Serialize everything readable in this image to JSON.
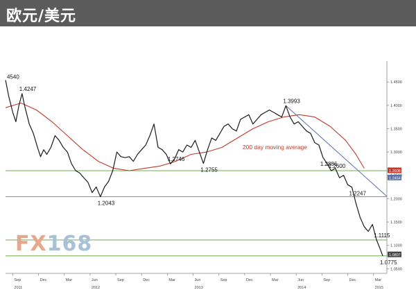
{
  "header": {
    "title": "欧元/美元"
  },
  "logo": {
    "part1": "FX",
    "part2": "168"
  },
  "chart_data": {
    "type": "line",
    "title": "欧元/美元",
    "xlabel": "",
    "ylabel": "",
    "x_tick_labels": [
      {
        "label": "Sep",
        "x": 2011.67
      },
      {
        "label": "Dec",
        "x": 2011.92
      },
      {
        "label": "Mar",
        "x": 2012.17
      },
      {
        "label": "Jun",
        "x": 2012.42
      },
      {
        "label": "Sep",
        "x": 2012.67
      },
      {
        "label": "Dec",
        "x": 2012.92
      },
      {
        "label": "Mar",
        "x": 2013.17
      },
      {
        "label": "Jun",
        "x": 2013.42
      },
      {
        "label": "Sep",
        "x": 2013.67
      },
      {
        "label": "Dec",
        "x": 2013.92
      },
      {
        "label": "Mar",
        "x": 2014.17
      },
      {
        "label": "Jun",
        "x": 2014.42
      },
      {
        "label": "Sep",
        "x": 2014.67
      },
      {
        "label": "Dec",
        "x": 2014.92
      },
      {
        "label": "Mar",
        "x": 2015.17
      }
    ],
    "year_labels": [
      {
        "label": "2011",
        "x": 2011.67
      },
      {
        "label": "2012",
        "x": 2012.42
      },
      {
        "label": "2013",
        "x": 2013.42
      },
      {
        "label": "2014",
        "x": 2014.42
      },
      {
        "label": "2015",
        "x": 2015.17
      }
    ],
    "xlim": [
      2011.6,
      2015.3
    ],
    "ylim": [
      1.04,
      1.48
    ],
    "y_ticks": [
      1.05,
      1.1,
      1.15,
      1.2,
      1.25,
      1.3,
      1.35,
      1.4,
      1.45
    ],
    "y_tick_labels": [
      "1.0500",
      "1.1000",
      "1.1500",
      "1.2000",
      "1.2500",
      "1.3000",
      "1.3500",
      "1.4000",
      "1.4500"
    ],
    "series": [
      {
        "name": "",
        "color": "#1a1a1a",
        "points": [
          [
            2011.6,
            1.454
          ],
          [
            2011.63,
            1.42
          ],
          [
            2011.67,
            1.385
          ],
          [
            2011.7,
            1.365
          ],
          [
            2011.73,
            1.4
          ],
          [
            2011.76,
            1.425
          ],
          [
            2011.79,
            1.395
          ],
          [
            2011.83,
            1.36
          ],
          [
            2011.87,
            1.34
          ],
          [
            2011.91,
            1.31
          ],
          [
            2011.94,
            1.29
          ],
          [
            2011.97,
            1.305
          ],
          [
            2012.0,
            1.295
          ],
          [
            2012.04,
            1.31
          ],
          [
            2012.08,
            1.335
          ],
          [
            2012.12,
            1.325
          ],
          [
            2012.16,
            1.31
          ],
          [
            2012.2,
            1.3
          ],
          [
            2012.24,
            1.275
          ],
          [
            2012.28,
            1.26
          ],
          [
            2012.32,
            1.255
          ],
          [
            2012.36,
            1.2445
          ],
          [
            2012.4,
            1.235
          ],
          [
            2012.44,
            1.213
          ],
          [
            2012.48,
            1.225
          ],
          [
            2012.52,
            1.2043
          ],
          [
            2012.56,
            1.225
          ],
          [
            2012.6,
            1.237
          ],
          [
            2012.64,
            1.26
          ],
          [
            2012.68,
            1.3
          ],
          [
            2012.72,
            1.29
          ],
          [
            2012.76,
            1.288
          ],
          [
            2012.8,
            1.29
          ],
          [
            2012.84,
            1.28
          ],
          [
            2012.88,
            1.295
          ],
          [
            2012.92,
            1.305
          ],
          [
            2012.96,
            1.315
          ],
          [
            2013.0,
            1.335
          ],
          [
            2013.04,
            1.36
          ],
          [
            2013.08,
            1.31
          ],
          [
            2013.12,
            1.305
          ],
          [
            2013.16,
            1.295
          ],
          [
            2013.2,
            1.2746
          ],
          [
            2013.24,
            1.285
          ],
          [
            2013.28,
            1.305
          ],
          [
            2013.32,
            1.3
          ],
          [
            2013.36,
            1.315
          ],
          [
            2013.4,
            1.31
          ],
          [
            2013.44,
            1.325
          ],
          [
            2013.48,
            1.3
          ],
          [
            2013.52,
            1.2755
          ],
          [
            2013.56,
            1.305
          ],
          [
            2013.6,
            1.33
          ],
          [
            2013.64,
            1.325
          ],
          [
            2013.68,
            1.34
          ],
          [
            2013.72,
            1.355
          ],
          [
            2013.76,
            1.36
          ],
          [
            2013.8,
            1.35
          ],
          [
            2013.84,
            1.345
          ],
          [
            2013.88,
            1.37
          ],
          [
            2013.92,
            1.375
          ],
          [
            2013.96,
            1.38
          ],
          [
            2014.0,
            1.36
          ],
          [
            2014.04,
            1.37
          ],
          [
            2014.08,
            1.38
          ],
          [
            2014.12,
            1.385
          ],
          [
            2014.16,
            1.39
          ],
          [
            2014.2,
            1.385
          ],
          [
            2014.24,
            1.38
          ],
          [
            2014.28,
            1.375
          ],
          [
            2014.32,
            1.3993
          ],
          [
            2014.36,
            1.375
          ],
          [
            2014.4,
            1.36
          ],
          [
            2014.44,
            1.365
          ],
          [
            2014.48,
            1.355
          ],
          [
            2014.52,
            1.345
          ],
          [
            2014.56,
            1.34
          ],
          [
            2014.6,
            1.32
          ],
          [
            2014.64,
            1.315
          ],
          [
            2014.68,
            1.2886
          ],
          [
            2014.72,
            1.275
          ],
          [
            2014.76,
            1.26
          ],
          [
            2014.8,
            1.265
          ],
          [
            2014.84,
            1.245
          ],
          [
            2014.88,
            1.25
          ],
          [
            2014.92,
            1.23
          ],
          [
            2014.96,
            1.2247
          ],
          [
            2015.0,
            1.19
          ],
          [
            2015.04,
            1.16
          ],
          [
            2015.08,
            1.14
          ],
          [
            2015.12,
            1.13
          ],
          [
            2015.16,
            1.145
          ],
          [
            2015.2,
            1.1115
          ],
          [
            2015.23,
            1.095
          ],
          [
            2015.26,
            1.0775
          ]
        ]
      },
      {
        "name": "200 day moving average",
        "color": "#c0392b",
        "points": [
          [
            2011.6,
            1.395
          ],
          [
            2011.75,
            1.405
          ],
          [
            2011.9,
            1.39
          ],
          [
            2012.05,
            1.365
          ],
          [
            2012.2,
            1.335
          ],
          [
            2012.35,
            1.305
          ],
          [
            2012.5,
            1.28
          ],
          [
            2012.65,
            1.265
          ],
          [
            2012.8,
            1.26
          ],
          [
            2012.95,
            1.265
          ],
          [
            2013.1,
            1.27
          ],
          [
            2013.25,
            1.28
          ],
          [
            2013.4,
            1.295
          ],
          [
            2013.55,
            1.3
          ],
          [
            2013.7,
            1.31
          ],
          [
            2013.85,
            1.33
          ],
          [
            2014.0,
            1.35
          ],
          [
            2014.15,
            1.365
          ],
          [
            2014.3,
            1.375
          ],
          [
            2014.45,
            1.38
          ],
          [
            2014.6,
            1.375
          ],
          [
            2014.75,
            1.355
          ],
          [
            2014.9,
            1.325
          ],
          [
            2015.0,
            1.295
          ],
          [
            2015.08,
            1.265
          ]
        ]
      }
    ],
    "price_labels": [
      {
        "text": "4540",
        "x": 2011.6,
        "y": 1.454
      },
      {
        "text": "1.4247",
        "x": 2011.76,
        "y": 1.4247
      },
      {
        "text": "1.2043",
        "x": 2012.52,
        "y": 1.2043
      },
      {
        "text": "1.2746",
        "x": 2013.2,
        "y": 1.2746
      },
      {
        "text": "1.2755",
        "x": 2013.52,
        "y": 1.2755
      },
      {
        "text": "1.3993",
        "x": 2014.32,
        "y": 1.3993
      },
      {
        "text": "1.2886",
        "x": 2014.68,
        "y": 1.2886
      },
      {
        "text": "1.2600",
        "x": 2014.76,
        "y": 1.26
      },
      {
        "text": "1.2247",
        "x": 2014.96,
        "y": 1.2247
      },
      {
        "text": "1.1115",
        "x": 2015.2,
        "y": 1.1115
      },
      {
        "text": "1.0775",
        "x": 2015.26,
        "y": 1.0775
      }
    ],
    "annotations": [
      {
        "text": "200 day moving average",
        "color": "#c0392b",
        "x": 2013.9,
        "y": 1.306
      }
    ],
    "horizontal_lines": [
      {
        "y": 1.26,
        "color": "#6ab04c"
      },
      {
        "y": 1.2043,
        "color": "#6ab04c"
      },
      {
        "y": 1.1115,
        "color": "#6ab04c"
      },
      {
        "y": 1.0775,
        "color": "#6ab04c"
      }
    ],
    "trendline": {
      "color": "#5b6fa8",
      "from": [
        2014.32,
        1.3993
      ],
      "to": [
        2015.3,
        1.205
      ]
    },
    "right_markers": [
      {
        "text": "1.2608",
        "y": 1.2608,
        "color": "#c0392b"
      },
      {
        "text": "1.2454",
        "y": 1.2454,
        "color": "#5b6fa8"
      },
      {
        "text": "1.0807",
        "y": 1.0807,
        "color": "#444444"
      }
    ]
  }
}
